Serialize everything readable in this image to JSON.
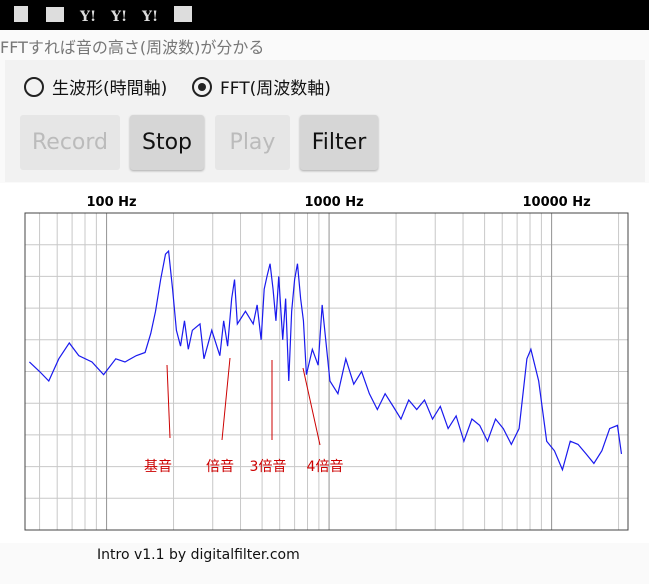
{
  "app": {
    "title": "FFTすれば音の高さ(周波数)が分かる",
    "radios": [
      "生波形(時間軸)",
      "FFT(周波数軸)"
    ],
    "radio_selected": 1,
    "buttons": [
      "Record",
      "Stop",
      "Play",
      "Filter"
    ],
    "buttons_enabled": [
      false,
      true,
      false,
      true
    ],
    "footer": "Intro v1.1 by digitalfilter.com"
  },
  "chart_data": {
    "type": "line",
    "xscale": "log",
    "grid": true,
    "xlim": [
      43,
      22050
    ],
    "ylim": [
      0,
      10
    ],
    "xticks": [
      {
        "value": 100,
        "label": "100 Hz"
      },
      {
        "value": 1000,
        "label": "1000 Hz"
      },
      {
        "value": 10000,
        "label": "10000 Hz"
      }
    ],
    "annotations": [
      "基音",
      "倍音",
      "3倍音",
      "4倍音"
    ],
    "annotation_color": "#cc0000",
    "x": [
      45,
      50,
      55,
      61,
      68,
      75,
      86,
      97,
      110,
      121,
      136,
      149,
      158,
      166,
      175,
      184,
      190,
      198,
      206,
      215,
      224,
      233,
      243,
      263,
      274,
      297,
      323,
      336,
      350,
      365,
      376,
      387,
      421,
      456,
      475,
      495,
      511,
      526,
      543,
      560,
      577,
      594,
      619,
      638,
      659,
      679,
      700,
      721,
      745,
      767,
      791,
      841,
      893,
      931,
      1009,
      1096,
      1189,
      1291,
      1400,
      1517,
      1648,
      1786,
      1941,
      2104,
      2280,
      2477,
      2685,
      2917,
      3162,
      3428,
      3724,
      4036,
      4385,
      4753,
      5152,
      5598,
      6067,
      6592,
      7145,
      7745,
      8072,
      8750,
      9506,
      10300,
      11190,
      12130,
      13150,
      14290,
      15490,
      16830,
      18240,
      19770,
      20610
    ],
    "series": [
      {
        "color": "#1a1aee",
        "values": [
          5.3,
          5.0,
          4.7,
          5.4,
          5.9,
          5.5,
          5.3,
          4.9,
          5.4,
          5.3,
          5.5,
          5.6,
          6.2,
          6.9,
          7.9,
          8.7,
          8.8,
          7.6,
          6.3,
          5.8,
          6.6,
          5.7,
          6.3,
          6.5,
          5.4,
          6.3,
          5.5,
          6.6,
          5.8,
          7.3,
          7.9,
          6.5,
          6.9,
          6.5,
          7.1,
          6.0,
          7.6,
          8.0,
          8.4,
          7.6,
          6.6,
          8.0,
          6.0,
          7.3,
          4.7,
          6.9,
          7.9,
          8.4,
          7.3,
          6.6,
          4.9,
          5.7,
          5.2,
          7.1,
          4.7,
          4.3,
          5.4,
          4.6,
          5.0,
          4.3,
          3.8,
          4.3,
          3.9,
          3.5,
          4.1,
          3.8,
          4.1,
          3.5,
          3.9,
          3.2,
          3.6,
          2.8,
          3.5,
          3.3,
          2.8,
          3.5,
          3.2,
          2.7,
          3.2,
          5.4,
          5.7,
          4.7,
          2.8,
          2.5,
          1.9,
          2.8,
          2.7,
          2.4,
          2.1,
          2.5,
          3.2,
          3.3,
          2.4
        ]
      }
    ]
  }
}
